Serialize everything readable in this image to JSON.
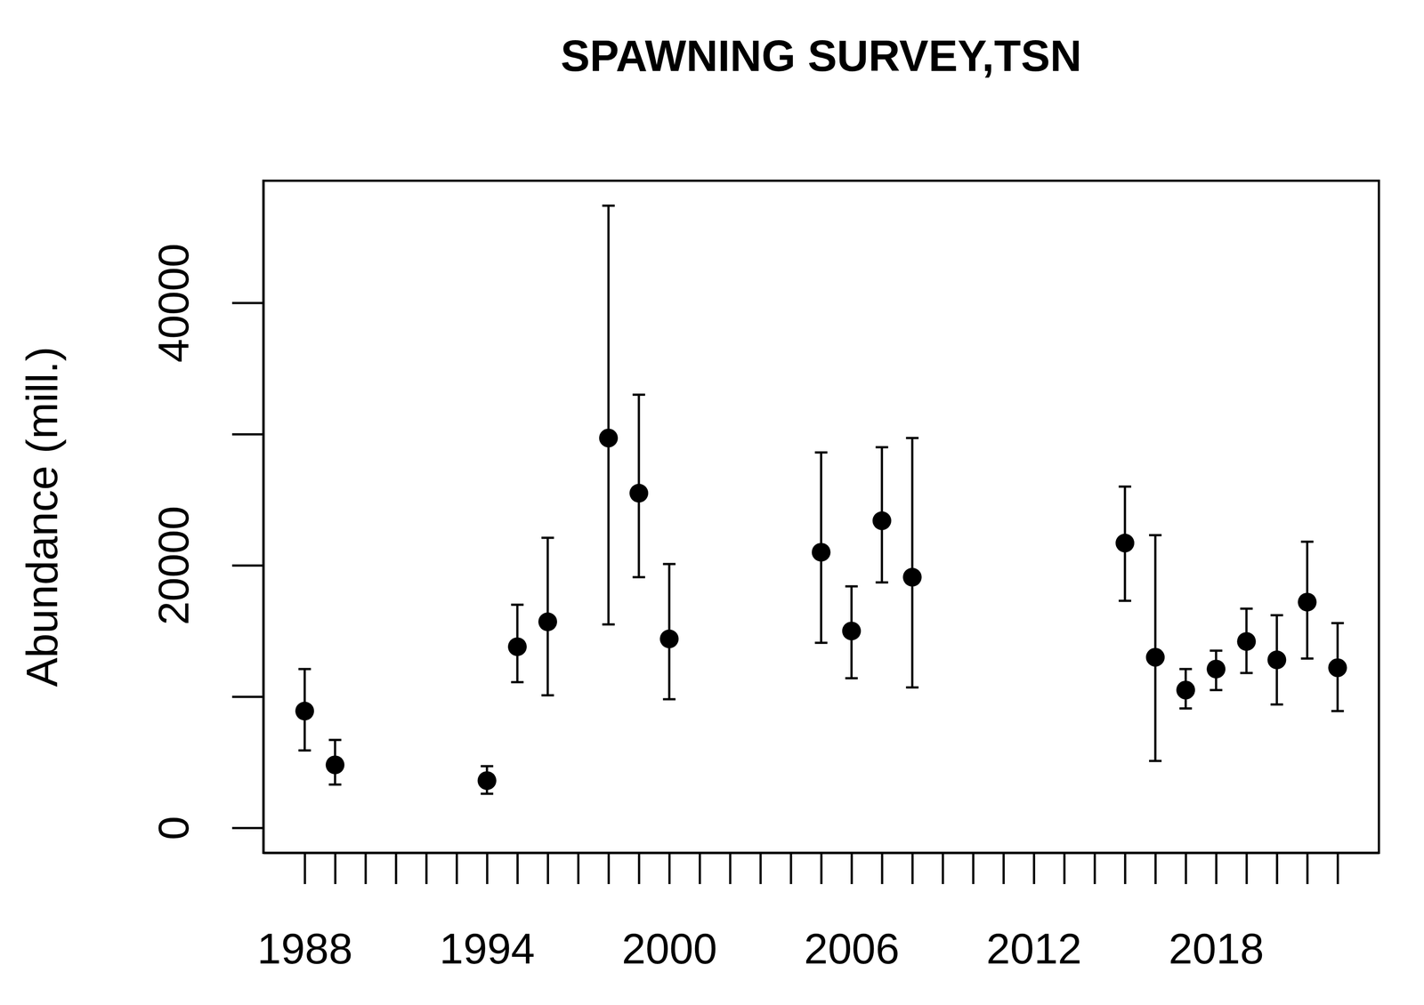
{
  "chart_data": {
    "type": "scatter",
    "title": "SPAWNING SURVEY,TSN",
    "y_label": "Abundance (mill.)",
    "x": [
      1988,
      1989,
      1994,
      1995,
      1996,
      1998,
      1999,
      2000,
      2005,
      2006,
      2007,
      2008,
      2015,
      2016,
      2017,
      2018,
      2019,
      2020,
      2021,
      2022
    ],
    "values": [
      8900,
      4800,
      3600,
      13800,
      15700,
      29700,
      25500,
      14400,
      21000,
      15000,
      23400,
      19100,
      21700,
      13000,
      10500,
      12100,
      14200,
      12800,
      17200,
      12200
    ],
    "lower": [
      5900,
      3300,
      2600,
      11100,
      10100,
      15500,
      19100,
      9800,
      14100,
      11400,
      18700,
      10700,
      17300,
      5100,
      9100,
      10500,
      11800,
      9400,
      12900,
      8900
    ],
    "upper": [
      12100,
      6700,
      4700,
      17000,
      22100,
      47400,
      33000,
      20100,
      28600,
      18400,
      29000,
      29700,
      26000,
      22300,
      12100,
      13500,
      16700,
      16200,
      21800,
      15600
    ],
    "color": "#000000",
    "marker": "circle",
    "xlim": [
      1986.64,
      2023.36
    ],
    "ylim": [
      -1900,
      49300
    ],
    "xticks": [
      1988,
      {
        "value": 1989,
        "label": null
      },
      {
        "value": 1990,
        "label": null
      },
      {
        "value": 1991,
        "label": null
      },
      {
        "value": 1992,
        "label": null
      },
      {
        "value": 1993,
        "label": null
      },
      1994,
      {
        "value": 1995,
        "label": null
      },
      {
        "value": 1996,
        "label": null
      },
      {
        "value": 1997,
        "label": null
      },
      {
        "value": 1998,
        "label": null
      },
      {
        "value": 1999,
        "label": null
      },
      2000,
      {
        "value": 2001,
        "label": null
      },
      {
        "value": 2002,
        "label": null
      },
      {
        "value": 2003,
        "label": null
      },
      {
        "value": 2004,
        "label": null
      },
      {
        "value": 2005,
        "label": null
      },
      2006,
      {
        "value": 2007,
        "label": null
      },
      {
        "value": 2008,
        "label": null
      },
      {
        "value": 2009,
        "label": null
      },
      {
        "value": 2010,
        "label": null
      },
      {
        "value": 2011,
        "label": null
      },
      2012,
      {
        "value": 2013,
        "label": null
      },
      {
        "value": 2014,
        "label": null
      },
      {
        "value": 2015,
        "label": null
      },
      {
        "value": 2016,
        "label": null
      },
      {
        "value": 2017,
        "label": null
      },
      2018,
      {
        "value": 2019,
        "label": null
      },
      {
        "value": 2020,
        "label": null
      },
      {
        "value": 2021,
        "label": null
      },
      {
        "value": 2022,
        "label": null
      }
    ],
    "yticks": [
      0,
      {
        "value": 10000,
        "label": null
      },
      20000,
      {
        "value": 30000,
        "label": null
      },
      40000
    ]
  }
}
